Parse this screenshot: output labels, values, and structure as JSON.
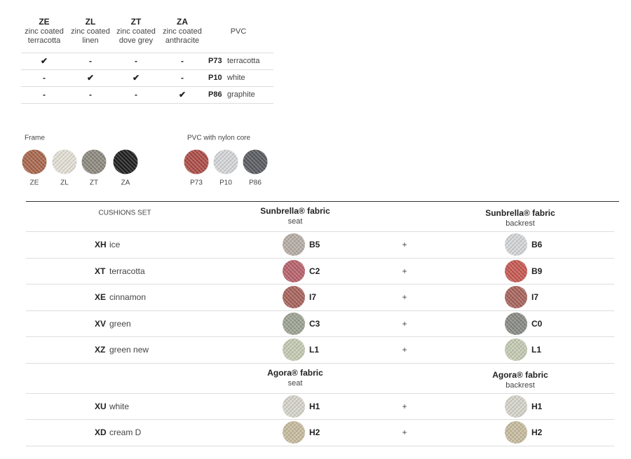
{
  "finish_table": {
    "columns": [
      {
        "code": "ZE",
        "desc": [
          "zinc coated",
          "terracotta"
        ]
      },
      {
        "code": "ZL",
        "desc": [
          "zinc coated",
          "linen"
        ]
      },
      {
        "code": "ZT",
        "desc": [
          "zinc coated",
          "dove grey"
        ]
      },
      {
        "code": "ZA",
        "desc": [
          "zinc coated",
          "anthracite"
        ]
      }
    ],
    "pvc_header": "PVC",
    "rows": [
      {
        "cells": [
          "✔",
          "-",
          "-",
          "-"
        ],
        "pvc_code": "P73",
        "pvc_name": "terracotta"
      },
      {
        "cells": [
          "-",
          "✔",
          "✔",
          "-"
        ],
        "pvc_code": "P10",
        "pvc_name": "white"
      },
      {
        "cells": [
          "-",
          "-",
          "-",
          "✔"
        ],
        "pvc_code": "P86",
        "pvc_name": "graphite"
      }
    ]
  },
  "frame": {
    "label": "Frame",
    "swatches": [
      {
        "code": "ZE",
        "color": "#a9654a"
      },
      {
        "code": "ZL",
        "color": "#e6e2d8"
      },
      {
        "code": "ZT",
        "color": "#8d897f"
      },
      {
        "code": "ZA",
        "color": "#1c1c1c"
      }
    ]
  },
  "pvc": {
    "label": "PVC with nylon core",
    "swatches": [
      {
        "code": "P73",
        "color": "#ad4a44"
      },
      {
        "code": "P10",
        "color": "#d6d8da"
      },
      {
        "code": "P86",
        "color": "#585a60"
      }
    ]
  },
  "cushions": {
    "header": "CUSHIONS SET",
    "groups": [
      {
        "seat": {
          "title": "Sunbrella® fabric",
          "sub": "seat"
        },
        "backrest": {
          "title": "Sunbrella® fabric",
          "sub": "backrest"
        },
        "rows": [
          {
            "code": "XH",
            "name": "ice",
            "seat": {
              "code": "B5",
              "color": "#b7aea6"
            },
            "plus": "+",
            "backrest": {
              "code": "B6",
              "color": "#d5d7d9"
            }
          },
          {
            "code": "XT",
            "name": "terracotta",
            "seat": {
              "code": "C2",
              "color": "#b9606a"
            },
            "plus": "+",
            "backrest": {
              "code": "B9",
              "color": "#c8564e"
            }
          },
          {
            "code": "XE",
            "name": "cinnamon",
            "seat": {
              "code": "I7",
              "color": "#a8625a"
            },
            "plus": "+",
            "backrest": {
              "code": "I7",
              "color": "#a8625a"
            }
          },
          {
            "code": "XV",
            "name": "green",
            "seat": {
              "code": "C3",
              "color": "#9da493"
            },
            "plus": "+",
            "backrest": {
              "code": "C0",
              "color": "#888a84"
            }
          },
          {
            "code": "XZ",
            "name": "green new",
            "seat": {
              "code": "L1",
              "color": "#c6ccb4"
            },
            "plus": "+",
            "backrest": {
              "code": "L1",
              "color": "#c6ccb4"
            }
          }
        ]
      },
      {
        "seat": {
          "title": "Agora® fabric",
          "sub": "seat"
        },
        "backrest": {
          "title": "Agora® fabric",
          "sub": "backrest"
        },
        "rows": [
          {
            "code": "XU",
            "name": "white",
            "seat": {
              "code": "H1",
              "color": "#d8d6cc"
            },
            "plus": "+",
            "backrest": {
              "code": "H1",
              "color": "#d8d6cc"
            }
          },
          {
            "code": "XD",
            "name": "cream D",
            "seat": {
              "code": "H2",
              "color": "#c8bd9f"
            },
            "plus": "+",
            "backrest": {
              "code": "H2",
              "color": "#c8bd9f"
            }
          }
        ]
      }
    ]
  }
}
